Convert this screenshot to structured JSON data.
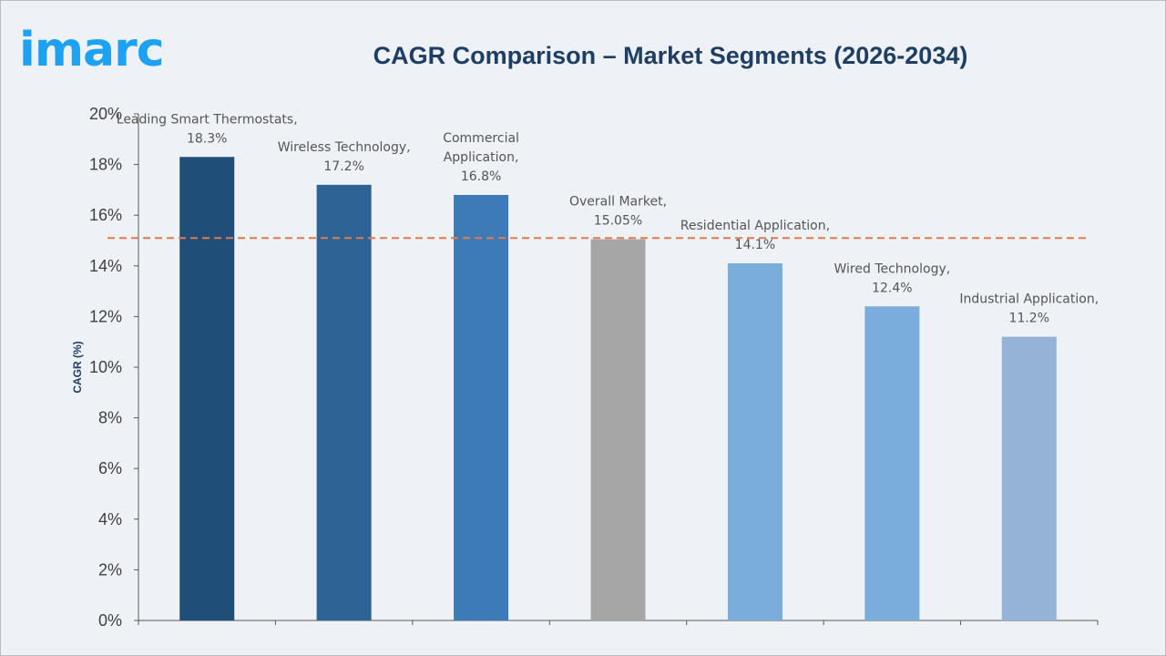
{
  "header": {
    "logo_text": "imarc",
    "title": "CAGR Comparison – Market Segments (2026-2034)"
  },
  "chart_data": {
    "type": "bar",
    "title": "CAGR Comparison – Market Segments (2026-2034)",
    "xlabel": "",
    "ylabel": "CAGR (%)",
    "ylim": [
      0,
      20
    ],
    "y_ticks": [
      "0%",
      "2%",
      "4%",
      "6%",
      "8%",
      "10%",
      "12%",
      "14%",
      "16%",
      "18%",
      "20%"
    ],
    "grid": false,
    "legend": "none",
    "categories": [
      "Leading Smart Thermostats",
      "Wireless Technology",
      "Commercial Application",
      "Overall Market",
      "Residential Application",
      "Wired Technology",
      "Industrial Application"
    ],
    "values": [
      18.3,
      17.2,
      16.8,
      15.05,
      14.1,
      12.4,
      11.2
    ],
    "data_labels": [
      [
        "Leading Smart Thermostats,",
        "18.3%"
      ],
      [
        "Wireless Technology,",
        "17.2%"
      ],
      [
        "Commercial",
        "Application,",
        "16.8%"
      ],
      [
        "Overall Market,",
        "15.05%"
      ],
      [
        "Residential Application,",
        "14.1%"
      ],
      [
        "Wired Technology,",
        "12.4%"
      ],
      [
        "Industrial Application,",
        "11.2%"
      ]
    ],
    "bar_colors": [
      "#1f4e79",
      "#2e6395",
      "#3d7ab8",
      "#a6a6a6",
      "#7aacdc",
      "#7aacdc",
      "#95b3d7"
    ],
    "reference_line": {
      "value": 15.1,
      "color": "#e07a4f",
      "style": "dashed"
    }
  }
}
